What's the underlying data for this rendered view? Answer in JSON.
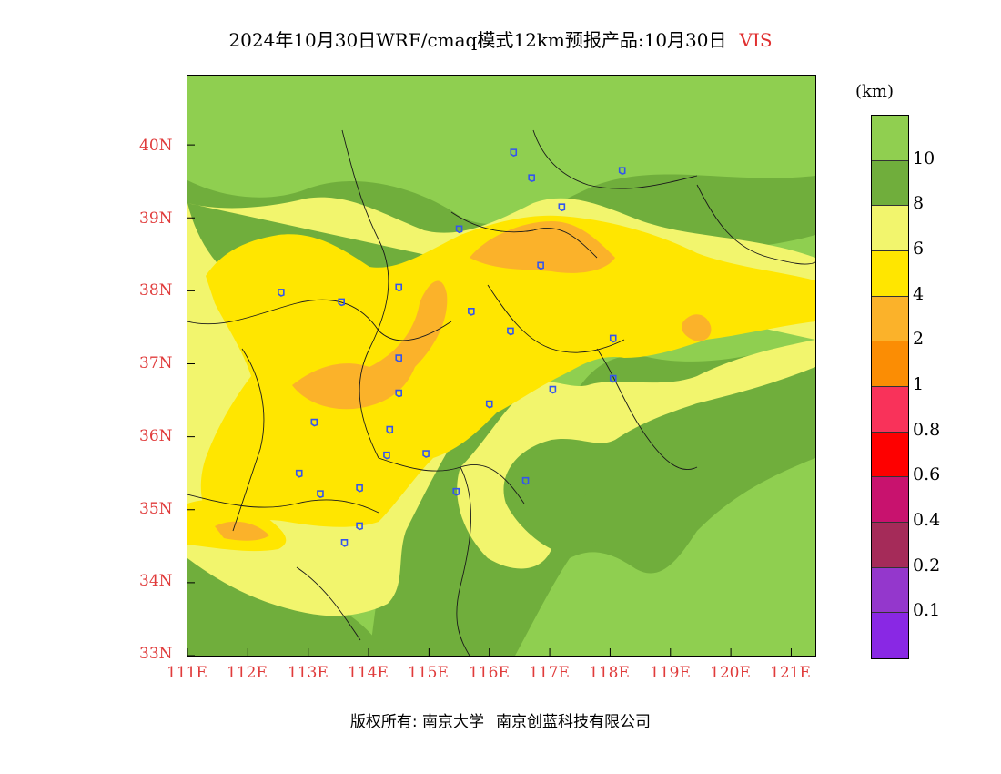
{
  "title": {
    "main": "2024年10月30日WRF/cmaq模式12km预报产品:10月30日",
    "variable": "VIS"
  },
  "map": {
    "lon_range": [
      111,
      121.4
    ],
    "lat_range": [
      33,
      40.95
    ],
    "lat_ticks": [
      "33N",
      "34N",
      "35N",
      "36N",
      "37N",
      "38N",
      "39N",
      "40N"
    ],
    "lon_ticks": [
      "111E",
      "112E",
      "113E",
      "114E",
      "115E",
      "116E",
      "117E",
      "118E",
      "119E",
      "120E",
      "121E"
    ],
    "label_color": "#e03b3b",
    "city_marker_color": "#3355ee",
    "cities": [
      {
        "lon": 116.4,
        "lat": 39.9
      },
      {
        "lon": 118.2,
        "lat": 39.65
      },
      {
        "lon": 116.7,
        "lat": 39.55
      },
      {
        "lon": 117.2,
        "lat": 39.15
      },
      {
        "lon": 115.5,
        "lat": 38.85
      },
      {
        "lon": 116.85,
        "lat": 38.35
      },
      {
        "lon": 112.55,
        "lat": 37.98
      },
      {
        "lon": 113.55,
        "lat": 37.85
      },
      {
        "lon": 114.5,
        "lat": 38.05
      },
      {
        "lon": 115.7,
        "lat": 37.72
      },
      {
        "lon": 116.35,
        "lat": 37.45
      },
      {
        "lon": 118.05,
        "lat": 37.35
      },
      {
        "lon": 114.5,
        "lat": 37.08
      },
      {
        "lon": 118.05,
        "lat": 36.8
      },
      {
        "lon": 114.5,
        "lat": 36.6
      },
      {
        "lon": 117.05,
        "lat": 36.65
      },
      {
        "lon": 116.0,
        "lat": 36.45
      },
      {
        "lon": 113.1,
        "lat": 36.2
      },
      {
        "lon": 114.35,
        "lat": 36.1
      },
      {
        "lon": 114.3,
        "lat": 35.75
      },
      {
        "lon": 114.95,
        "lat": 35.77
      },
      {
        "lon": 112.85,
        "lat": 35.5
      },
      {
        "lon": 113.85,
        "lat": 35.3
      },
      {
        "lon": 113.2,
        "lat": 35.22
      },
      {
        "lon": 115.45,
        "lat": 35.25
      },
      {
        "lon": 116.6,
        "lat": 35.4
      },
      {
        "lon": 113.85,
        "lat": 34.78
      },
      {
        "lon": 113.6,
        "lat": 34.55
      }
    ]
  },
  "colorbar": {
    "unit": "(km)",
    "swatches": [
      "#90cf50",
      "#70ae3c",
      "#f2f56d",
      "#ffe600",
      "#fbb22a",
      "#fb8d04",
      "#f9325a",
      "#fe0000",
      "#c8126e",
      "#a52b59",
      "#9437cc",
      "#8928e4"
    ],
    "labels": [
      "10",
      "8",
      "6",
      "4",
      "2",
      "1",
      "0.8",
      "0.6",
      "0.4",
      "0.2",
      "0.1"
    ]
  },
  "footer": {
    "left": "版权所有: 南京大学",
    "right": "南京创蓝科技有限公司"
  }
}
